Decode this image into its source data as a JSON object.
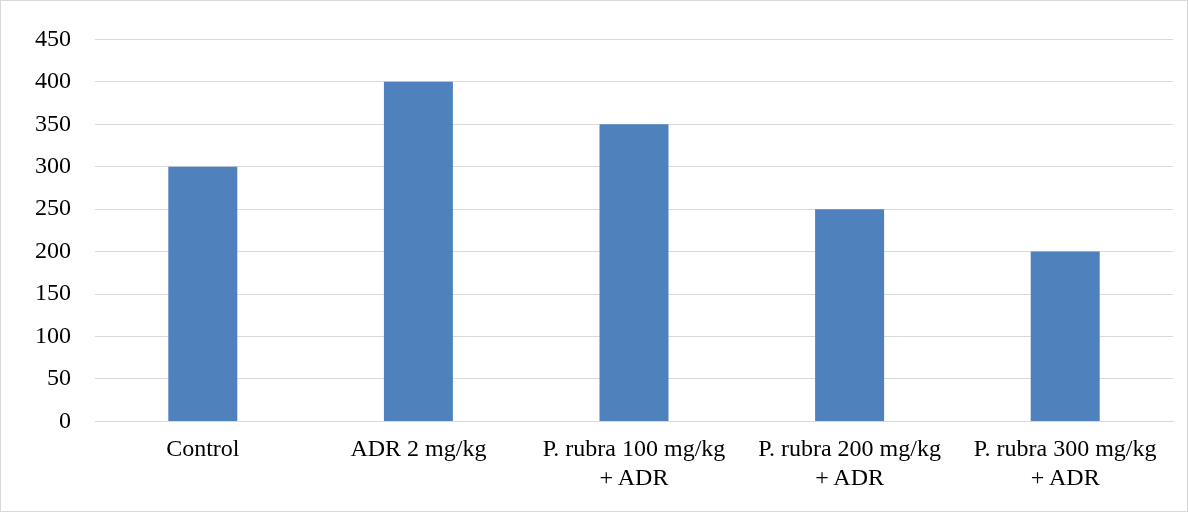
{
  "chart_data": {
    "type": "bar",
    "categories": [
      "Control",
      "ADR 2 mg/kg",
      "P. rubra 100 mg/kg + ADR",
      "P. rubra 200 mg/kg + ADR",
      "P. rubra 300 mg/kg + ADR"
    ],
    "values": [
      300,
      400,
      350,
      250,
      200
    ],
    "color": "#4f81bd",
    "ylim": [
      0,
      450
    ],
    "yticks": [
      0,
      50,
      100,
      150,
      200,
      250,
      300,
      350,
      400,
      450
    ],
    "grid": "y",
    "legend": false
  }
}
